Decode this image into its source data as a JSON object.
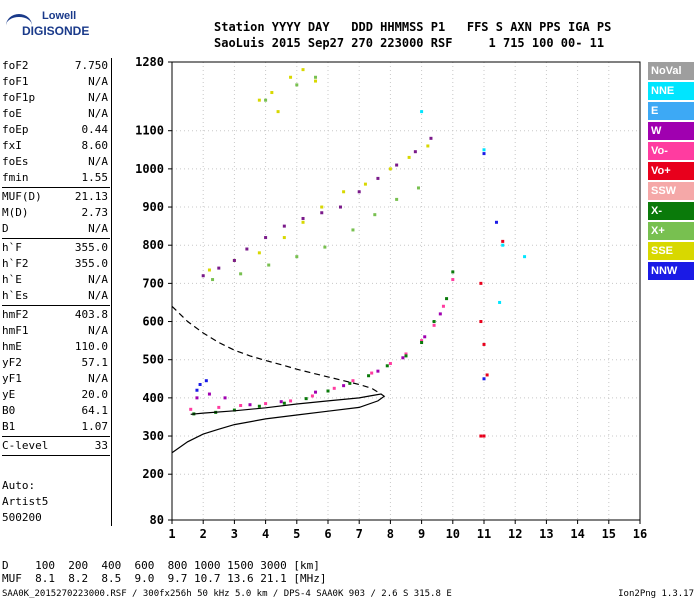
{
  "logo": {
    "line1": "Lowell",
    "line2": "DIGISONDE"
  },
  "header": {
    "line1": "Station YYYY DAY   DDD HHMMSS P1   FFS S AXN PPS IGA PS",
    "line2": "SaoLuis 2015 Sep27 270 223000 RSF     1 715 100 00- 11"
  },
  "params": [
    {
      "name": "foF2",
      "value": "7.750"
    },
    {
      "name": "foF1",
      "value": "N/A"
    },
    {
      "name": "foF1p",
      "value": "N/A"
    },
    {
      "name": "foE",
      "value": "N/A"
    },
    {
      "name": "foEp",
      "value": "0.44"
    },
    {
      "name": "fxI",
      "value": "8.60"
    },
    {
      "name": "foEs",
      "value": "N/A"
    },
    {
      "name": "fmin",
      "value": "1.55"
    },
    {
      "sep": true
    },
    {
      "name": "MUF(D)",
      "value": "21.13"
    },
    {
      "name": "M(D)",
      "value": "2.73"
    },
    {
      "name": "D",
      "value": "N/A"
    },
    {
      "sep": true
    },
    {
      "name": "h`F",
      "value": "355.0"
    },
    {
      "name": "h`F2",
      "value": "355.0"
    },
    {
      "name": "h`E",
      "value": "N/A"
    },
    {
      "name": "h`Es",
      "value": "N/A"
    },
    {
      "sep": true
    },
    {
      "name": "hmF2",
      "value": "403.8"
    },
    {
      "name": "hmF1",
      "value": "N/A"
    },
    {
      "name": "hmE",
      "value": "110.0"
    },
    {
      "name": "yF2",
      "value": "57.1"
    },
    {
      "name": "yF1",
      "value": "N/A"
    },
    {
      "name": "yE",
      "value": "20.0"
    },
    {
      "name": "B0",
      "value": "64.1"
    },
    {
      "name": "B1",
      "value": "1.07"
    },
    {
      "sep": true
    },
    {
      "name": "C-level",
      "value": "33"
    },
    {
      "sep": true
    }
  ],
  "autoscale": {
    "line1": "Auto:",
    "line2": "Artist5",
    "line3": "500200"
  },
  "legend": [
    {
      "label": "NoVal",
      "bg": "#9e9e9e",
      "fg": "#ffffff"
    },
    {
      "label": "NNE",
      "bg": "#00e5ff",
      "fg": "#ffffff"
    },
    {
      "label": "E",
      "bg": "#3da9f5",
      "fg": "#ffffff"
    },
    {
      "label": "W",
      "bg": "#a000b0",
      "fg": "#ffffff"
    },
    {
      "label": "Vo-",
      "bg": "#ff3ca0",
      "fg": "#ffffff"
    },
    {
      "label": "Vo+",
      "bg": "#e8001c",
      "fg": "#ffffff"
    },
    {
      "label": "SSW",
      "bg": "#f5a8a8",
      "fg": "#ffffff"
    },
    {
      "label": "X-",
      "bg": "#0a7a0a",
      "fg": "#ffffff"
    },
    {
      "label": "X+",
      "bg": "#78c050",
      "fg": "#ffffff"
    },
    {
      "label": "SSE",
      "bg": "#d8d800",
      "fg": "#ffffff"
    },
    {
      "label": "NNW",
      "bg": "#1a1ae6",
      "fg": "#ffffff"
    }
  ],
  "bottom": {
    "row1": "D    100  200  400  600  800 1000 1500 3000 [km]",
    "row2": "MUF  8.1  8.2  8.5  9.0  9.7 10.7 13.6 21.1 [MHz]"
  },
  "footer": "SAA0K_2015270223000.RSF / 300fx256h 50 kHz 5.0 km / DPS-4 SAA0K 903 / 2.6 S 315.8 E",
  "version": "Ion2Png 1.3.17",
  "chart_data": {
    "type": "scatter",
    "xlim": [
      1,
      16
    ],
    "ylim": [
      80,
      1280
    ],
    "x_ticks": [
      1,
      2,
      3,
      4,
      5,
      6,
      7,
      8,
      9,
      10,
      11,
      12,
      13,
      14,
      15,
      16
    ],
    "y_ticks": [
      80,
      200,
      300,
      400,
      500,
      600,
      700,
      800,
      900,
      1000,
      1100,
      1280
    ],
    "series": [
      {
        "color": "#ff3ca0",
        "points": [
          [
            1.6,
            370
          ],
          [
            2.5,
            375
          ],
          [
            3.2,
            380
          ],
          [
            4.0,
            385
          ],
          [
            4.8,
            392
          ],
          [
            5.5,
            405
          ],
          [
            6.2,
            425
          ],
          [
            6.8,
            445
          ],
          [
            7.4,
            465
          ],
          [
            8.0,
            490
          ],
          [
            8.5,
            515
          ],
          [
            9.0,
            550
          ],
          [
            9.4,
            590
          ],
          [
            9.7,
            640
          ],
          [
            10.0,
            710
          ]
        ]
      },
      {
        "color": "#0a7a0a",
        "points": [
          [
            1.7,
            358
          ],
          [
            2.4,
            362
          ],
          [
            3.0,
            368
          ],
          [
            3.8,
            378
          ],
          [
            4.6,
            386
          ],
          [
            5.3,
            398
          ],
          [
            6.0,
            418
          ],
          [
            6.7,
            438
          ],
          [
            7.3,
            458
          ],
          [
            7.9,
            484
          ],
          [
            8.5,
            510
          ],
          [
            9.0,
            545
          ],
          [
            9.4,
            600
          ],
          [
            9.8,
            660
          ],
          [
            10.0,
            730
          ]
        ]
      },
      {
        "color": "#a000b0",
        "points": [
          [
            1.8,
            400
          ],
          [
            2.2,
            410
          ],
          [
            2.7,
            400
          ],
          [
            3.5,
            382
          ],
          [
            4.5,
            390
          ],
          [
            5.6,
            415
          ],
          [
            6.5,
            432
          ],
          [
            7.6,
            470
          ],
          [
            8.4,
            505
          ],
          [
            9.1,
            560
          ],
          [
            9.6,
            620
          ]
        ]
      },
      {
        "color": "#d8d800",
        "points": [
          [
            2.2,
            735
          ],
          [
            3.0,
            760
          ],
          [
            3.8,
            780
          ],
          [
            4.6,
            820
          ],
          [
            5.2,
            860
          ],
          [
            5.8,
            900
          ],
          [
            6.5,
            940
          ],
          [
            7.2,
            960
          ],
          [
            8.0,
            1000
          ],
          [
            8.6,
            1030
          ],
          [
            9.2,
            1060
          ],
          [
            3.8,
            1180
          ],
          [
            4.2,
            1200
          ],
          [
            4.8,
            1240
          ],
          [
            5.2,
            1260
          ],
          [
            5.6,
            1230
          ],
          [
            4.4,
            1150
          ]
        ]
      },
      {
        "color": "#7a1a8a",
        "points": [
          [
            2.0,
            720
          ],
          [
            2.5,
            740
          ],
          [
            3.0,
            760
          ],
          [
            3.4,
            790
          ],
          [
            4.0,
            820
          ],
          [
            4.6,
            850
          ],
          [
            5.2,
            870
          ],
          [
            5.8,
            885
          ],
          [
            6.4,
            900
          ],
          [
            7.0,
            940
          ],
          [
            7.6,
            975
          ],
          [
            8.2,
            1010
          ],
          [
            8.8,
            1045
          ],
          [
            9.3,
            1080
          ]
        ]
      },
      {
        "color": "#78c050",
        "points": [
          [
            2.3,
            710
          ],
          [
            3.2,
            725
          ],
          [
            4.1,
            748
          ],
          [
            5.0,
            770
          ],
          [
            5.9,
            795
          ],
          [
            6.8,
            840
          ],
          [
            7.5,
            880
          ],
          [
            8.2,
            920
          ],
          [
            8.9,
            950
          ],
          [
            4.0,
            1180
          ],
          [
            5.0,
            1220
          ],
          [
            5.6,
            1240
          ]
        ]
      },
      {
        "color": "#1a1ae6",
        "points": [
          [
            1.8,
            420
          ],
          [
            1.9,
            435
          ],
          [
            2.1,
            445
          ],
          [
            11.0,
            1040
          ],
          [
            11.4,
            860
          ],
          [
            11.0,
            450
          ]
        ]
      },
      {
        "color": "#e8001c",
        "points": [
          [
            10.9,
            700
          ],
          [
            10.9,
            600
          ],
          [
            11.0,
            540
          ],
          [
            11.1,
            460
          ],
          [
            11.0,
            300
          ],
          [
            10.9,
            300
          ],
          [
            11.6,
            810
          ]
        ]
      },
      {
        "color": "#00e5ff",
        "points": [
          [
            11.6,
            800
          ],
          [
            12.3,
            770
          ],
          [
            11.5,
            650
          ],
          [
            9.0,
            1150
          ],
          [
            11.0,
            1050
          ]
        ]
      }
    ],
    "profile_solid": [
      [
        1.0,
        256
      ],
      [
        1.5,
        285
      ],
      [
        2.0,
        305
      ],
      [
        2.5,
        318
      ],
      [
        3.0,
        330
      ],
      [
        4.0,
        345
      ],
      [
        5.0,
        355
      ],
      [
        6.0,
        365
      ],
      [
        7.0,
        375
      ],
      [
        7.6,
        392
      ],
      [
        7.8,
        404
      ],
      [
        7.7,
        410
      ],
      [
        7.4,
        406
      ],
      [
        7.0,
        400
      ],
      [
        6.0,
        392
      ],
      [
        5.0,
        384
      ],
      [
        4.0,
        374
      ],
      [
        3.0,
        366
      ],
      [
        2.0,
        360
      ],
      [
        1.6,
        357
      ]
    ],
    "profile_dashed": [
      [
        1.0,
        640
      ],
      [
        1.5,
        600
      ],
      [
        2.0,
        570
      ],
      [
        2.5,
        545
      ],
      [
        3.0,
        525
      ],
      [
        3.5,
        510
      ],
      [
        4.0,
        498
      ],
      [
        4.5,
        487
      ],
      [
        5.0,
        475
      ],
      [
        5.5,
        465
      ],
      [
        6.0,
        455
      ],
      [
        6.5,
        445
      ],
      [
        7.0,
        435
      ],
      [
        7.4,
        425
      ],
      [
        7.7,
        410
      ]
    ]
  }
}
